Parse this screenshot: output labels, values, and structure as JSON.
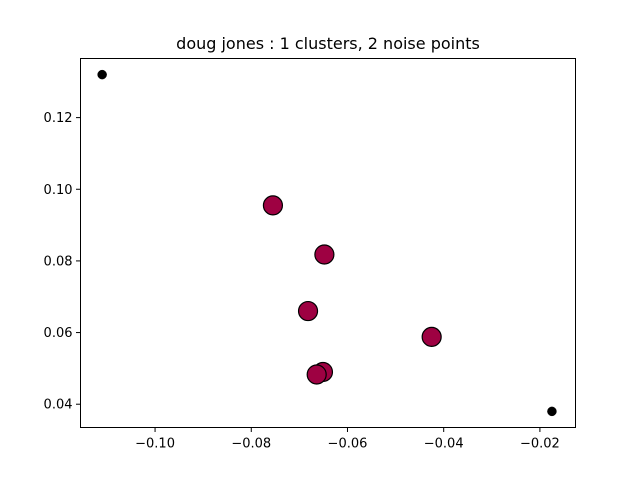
{
  "chart_data": {
    "type": "scatter",
    "title": "doug jones : 1 clusters, 2 noise points",
    "xlabel": "",
    "ylabel": "",
    "xlim": [
      -0.1155,
      -0.0126
    ],
    "ylim": [
      0.0335,
      0.1365
    ],
    "xticks": [
      -0.1,
      -0.08,
      -0.06,
      -0.04,
      -0.02
    ],
    "xtick_labels": [
      "−0.10",
      "−0.08",
      "−0.06",
      "−0.04",
      "−0.02"
    ],
    "yticks": [
      0.04,
      0.06,
      0.08,
      0.1,
      0.12
    ],
    "ytick_labels": [
      "0.04",
      "0.06",
      "0.08",
      "0.10",
      "0.12"
    ],
    "grid": false,
    "series": [
      {
        "role": "cluster",
        "color": "#9e0142",
        "edge_color": "#000000",
        "marker": "large-circle",
        "points": [
          {
            "x": -0.0755,
            "y": 0.0955
          },
          {
            "x": -0.0648,
            "y": 0.0818
          },
          {
            "x": -0.0682,
            "y": 0.066
          },
          {
            "x": -0.0425,
            "y": 0.0588
          },
          {
            "x": -0.0651,
            "y": 0.049
          },
          {
            "x": -0.0664,
            "y": 0.0483
          }
        ]
      },
      {
        "role": "noise",
        "color": "#000000",
        "edge_color": "#000000",
        "marker": "small-circle",
        "points": [
          {
            "x": -0.111,
            "y": 0.132
          },
          {
            "x": -0.0175,
            "y": 0.038
          }
        ]
      }
    ]
  }
}
